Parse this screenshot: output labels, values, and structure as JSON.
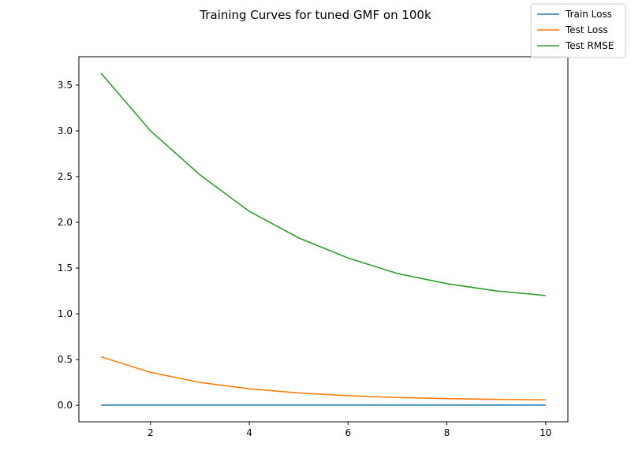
{
  "chart_data": {
    "type": "line",
    "title": "Training Curves for tuned GMF on 100k",
    "xlabel": "",
    "ylabel": "",
    "x": [
      1,
      2,
      3,
      4,
      5,
      6,
      7,
      8,
      9,
      10
    ],
    "xlim": [
      0.55,
      10.45
    ],
    "ylim": [
      -0.18,
      3.81
    ],
    "x_ticks": [
      2,
      4,
      6,
      8,
      10
    ],
    "y_ticks": [
      0.0,
      0.5,
      1.0,
      1.5,
      2.0,
      2.5,
      3.0,
      3.5
    ],
    "x_tick_labels": [
      "2",
      "4",
      "6",
      "8",
      "10"
    ],
    "y_tick_labels": [
      "0.0",
      "0.5",
      "1.0",
      "1.5",
      "2.0",
      "2.5",
      "3.0",
      "3.5"
    ],
    "grid": false,
    "legend_position": "top-right",
    "series": [
      {
        "name": "Train Loss",
        "color": "#1f77b4",
        "values": [
          0.003,
          0.003,
          0.003,
          0.003,
          0.003,
          0.003,
          0.003,
          0.003,
          0.003,
          0.003
        ]
      },
      {
        "name": "Test Loss",
        "color": "#ff7f0e",
        "values": [
          0.53,
          0.36,
          0.25,
          0.18,
          0.135,
          0.105,
          0.085,
          0.073,
          0.065,
          0.06
        ]
      },
      {
        "name": "Test RMSE",
        "color": "#2ca02c",
        "values": [
          3.63,
          3.0,
          2.52,
          2.12,
          1.83,
          1.61,
          1.44,
          1.33,
          1.25,
          1.2
        ]
      }
    ]
  }
}
